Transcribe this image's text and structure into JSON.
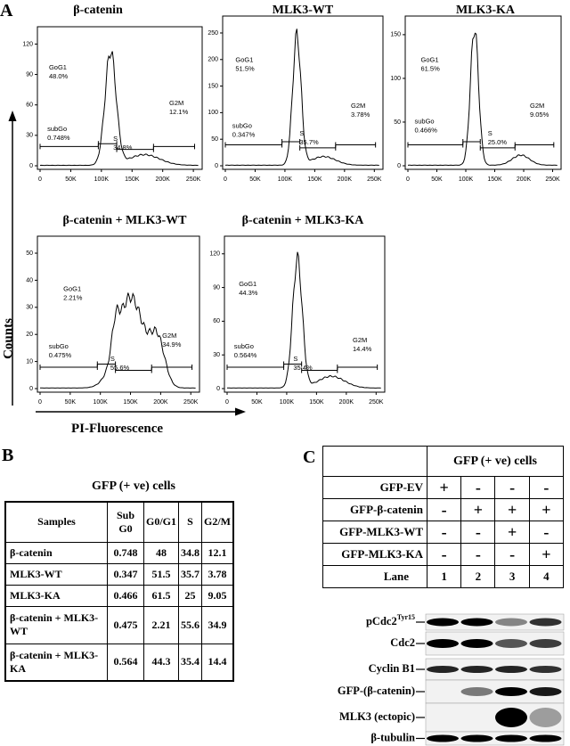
{
  "panel_a": {
    "letter": "A",
    "y_label": "Counts",
    "x_label": "PI-Fluorescence",
    "xticks": [
      "0",
      "50K",
      "100K",
      "150K",
      "200K",
      "250K"
    ],
    "histograms": [
      {
        "title": "β-catenin",
        "yticks": [
          0,
          30,
          60,
          90,
          120
        ],
        "gates": {
          "g0g1": {
            "name": "GoG1",
            "pct": "48.0%"
          },
          "subgo": {
            "name": "subGo",
            "pct": "0.748%"
          },
          "s": {
            "name": "S",
            "pct": "34.8%"
          },
          "g2m": {
            "name": "G2M",
            "pct": "12.1%"
          }
        }
      },
      {
        "title": "MLK3-WT",
        "yticks": [
          0,
          50,
          100,
          150,
          200,
          250
        ],
        "gates": {
          "g0g1": {
            "name": "GoG1",
            "pct": "51.5%"
          },
          "subgo": {
            "name": "subGo",
            "pct": "0.347%"
          },
          "s": {
            "name": "S",
            "pct": "35.7%"
          },
          "g2m": {
            "name": "G2M",
            "pct": "3.78%"
          }
        }
      },
      {
        "title": "MLK3-KA",
        "yticks": [
          0,
          50,
          100,
          150
        ],
        "gates": {
          "g0g1": {
            "name": "GoG1",
            "pct": "61.5%"
          },
          "subgo": {
            "name": "subGo",
            "pct": "0.466%"
          },
          "s": {
            "name": "S",
            "pct": "25.0%"
          },
          "g2m": {
            "name": "G2M",
            "pct": "9.05%"
          }
        }
      },
      {
        "title": "β-catenin + MLK3-WT",
        "yticks": [
          0,
          10,
          20,
          30,
          40,
          50
        ],
        "gates": {
          "g0g1": {
            "name": "GoG1",
            "pct": "2.21%"
          },
          "subgo": {
            "name": "subGo",
            "pct": "0.475%"
          },
          "s": {
            "name": "S",
            "pct": "55.6%"
          },
          "g2m": {
            "name": "G2M",
            "pct": "34.9%"
          }
        }
      },
      {
        "title": "β-catenin + MLK3-KA",
        "yticks": [
          0,
          30,
          60,
          90,
          120
        ],
        "gates": {
          "g0g1": {
            "name": "GoG1",
            "pct": "44.3%"
          },
          "subgo": {
            "name": "subGo",
            "pct": "0.564%"
          },
          "s": {
            "name": "S",
            "pct": "35.4%"
          },
          "g2m": {
            "name": "G2M",
            "pct": "14.4%"
          }
        }
      }
    ]
  },
  "panel_b": {
    "letter": "B",
    "title": "GFP (+ ve) cells",
    "table": {
      "header": [
        "Samples",
        "Sub G0",
        "G0/G1",
        "S",
        "G2/M"
      ],
      "rows": [
        [
          "β-catenin",
          0.748,
          48.0,
          34.8,
          12.1
        ],
        [
          "MLK3-WT",
          0.347,
          51.5,
          35.7,
          3.78
        ],
        [
          "MLK3-KA",
          0.466,
          61.5,
          25.0,
          9.05
        ],
        [
          "β-catenin + MLK3-WT",
          0.475,
          2.21,
          55.6,
          34.9
        ],
        [
          "β-catenin + MLK3-KA",
          0.564,
          44.3,
          35.4,
          14.4
        ]
      ]
    }
  },
  "panel_c": {
    "letter": "C",
    "header": "GFP (+ ve) cells",
    "rows": [
      {
        "label": "GFP-EV",
        "marks": [
          "+",
          "-",
          "-",
          "-"
        ]
      },
      {
        "label": "GFP-β-catenin",
        "marks": [
          "-",
          "+",
          "+",
          "+"
        ]
      },
      {
        "label": "GFP-MLK3-WT",
        "marks": [
          "-",
          "-",
          "+",
          "-"
        ]
      },
      {
        "label": "GFP-MLK3-KA",
        "marks": [
          "-",
          "-",
          "-",
          "+"
        ]
      }
    ],
    "lane": {
      "label": "Lane",
      "numbers": [
        1,
        2,
        3,
        4
      ]
    },
    "blots": [
      {
        "label": "pCdc2",
        "superscript": "Tyr15"
      },
      {
        "label": "Cdc2"
      },
      {
        "label": "Cyclin B1"
      },
      {
        "label": "GFP-(β-catenin)"
      },
      {
        "label": "MLK3 (ectopic)"
      },
      {
        "label": "β-tubulin"
      }
    ]
  }
}
